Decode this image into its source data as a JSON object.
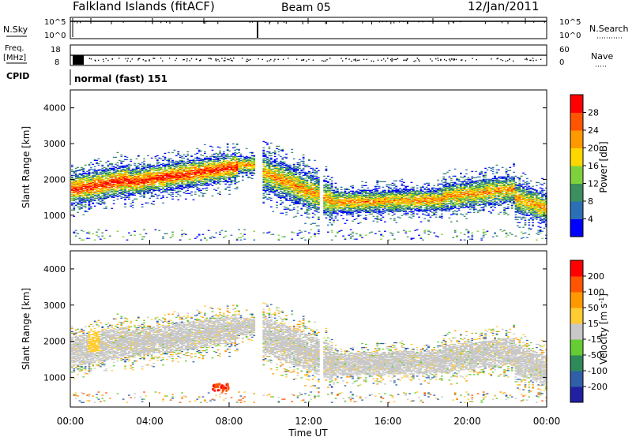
{
  "header": {
    "station": "Falkland Islands (fitACF)",
    "beam": "Beam 05",
    "date": "12/Jan/2011"
  },
  "panels": {
    "nsky_label": "N.Sky",
    "nsearch_label": "N.Search",
    "nsky_ticks": [
      "10^5",
      "10^0"
    ],
    "nsearch_ticks": [
      "10^5",
      "10^0"
    ],
    "freq_label_line1": "Freq.",
    "freq_label_line2": "[MHz]",
    "freq_ticks": [
      "18",
      "8"
    ],
    "nave_label": "Nave",
    "nave_ticks": [
      "60",
      "0"
    ],
    "cpid_label": "CPID",
    "cpid_text": "normal (fast) 151"
  },
  "chart_data": [
    {
      "type": "heatmap",
      "name": "power",
      "ylabel": "Slant Range [km]",
      "xlabel": "",
      "yticks": [
        1000,
        2000,
        3000,
        4000
      ],
      "ylim": [
        180,
        4500
      ],
      "colorbar": {
        "label": "Power [dB]",
        "ticks": [
          "4",
          "8",
          "12",
          "16",
          "20",
          "24",
          "28"
        ],
        "colors": [
          "#0000ff",
          "#2b6fb5",
          "#3c8f5e",
          "#7fd13b",
          "#ffd700",
          "#ff9900",
          "#ff5500",
          "#ff0000"
        ]
      }
    },
    {
      "type": "heatmap",
      "name": "velocity",
      "ylabel": "Slant Range [km]",
      "xlabel": "Time UT",
      "yticks": [
        1000,
        2000,
        3000,
        4000
      ],
      "ylim": [
        180,
        4500
      ],
      "xticks": [
        "00:00",
        "04:00",
        "08:00",
        "12:00",
        "16:00",
        "20:00",
        "00:00"
      ],
      "colorbar": {
        "label": "Velocity [m s^-1]",
        "ticks": [
          "200",
          "100",
          "50",
          "15",
          "-15",
          "-50",
          "-100",
          "-200"
        ],
        "colors": [
          "#2020a0",
          "#2f5fa8",
          "#2f8a5a",
          "#66cc33",
          "#c8c8c8",
          "#ffcc33",
          "#ff9900",
          "#ff5500",
          "#ff0000"
        ]
      }
    }
  ]
}
